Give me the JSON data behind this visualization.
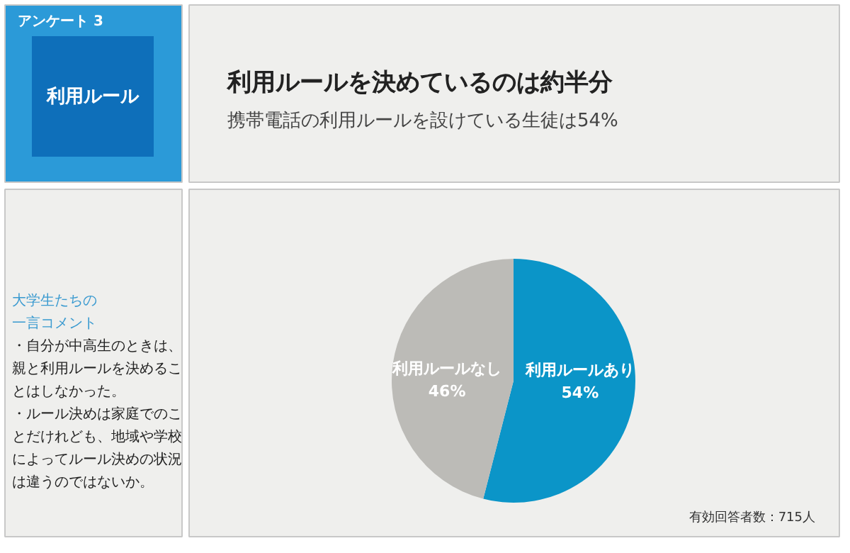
{
  "chart_data": {
    "type": "pie",
    "title": "利用ルールを決めているのは約半分",
    "subtitle": "携帯電話の利用ルールを設けている生徒は54%",
    "categories": [
      "利用ルールあり",
      "利用ルールなし"
    ],
    "values": [
      54,
      46
    ],
    "colors": [
      "#0b95c8",
      "#bcbbb7"
    ],
    "value_labels": [
      "54%",
      "46%"
    ],
    "annotations": [
      "アンケート 3",
      "利用ルール",
      "大学生たちの一言コメント",
      "・自分が中高生のときは、親と利用ルールを決めることはしなかった。",
      "・ルール決めは家庭でのことだけれども、地域や学校によってルール決めの状況は違うのではないか。",
      "有効回答者数：715人"
    ]
  }
}
